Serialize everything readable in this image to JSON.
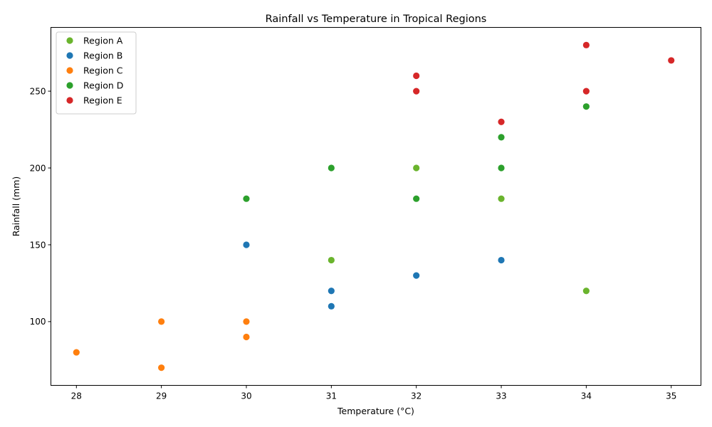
{
  "chart_data": {
    "type": "scatter",
    "title": "Rainfall vs Temperature in Tropical Regions",
    "xlabel": "Temperature (°C)",
    "ylabel": "Rainfall (mm)",
    "xlim": [
      27.7,
      35.35
    ],
    "ylim": [
      58.5,
      291.5
    ],
    "xticks": [
      28,
      29,
      30,
      31,
      32,
      33,
      34,
      35
    ],
    "yticks": [
      100,
      150,
      200,
      250
    ],
    "grid": false,
    "legend_position": "upper-left",
    "series": [
      {
        "name": "Region A",
        "color": "#6ab42d",
        "points": [
          {
            "x": 31,
            "y": 140
          },
          {
            "x": 32,
            "y": 200
          },
          {
            "x": 33,
            "y": 180
          },
          {
            "x": 34,
            "y": 120
          }
        ]
      },
      {
        "name": "Region B",
        "color": "#1f77b4",
        "points": [
          {
            "x": 30,
            "y": 150
          },
          {
            "x": 31,
            "y": 120
          },
          {
            "x": 31,
            "y": 110
          },
          {
            "x": 32,
            "y": 130
          },
          {
            "x": 33,
            "y": 140
          }
        ]
      },
      {
        "name": "Region C",
        "color": "#ff7f0e",
        "points": [
          {
            "x": 28,
            "y": 80
          },
          {
            "x": 29,
            "y": 100
          },
          {
            "x": 29,
            "y": 70
          },
          {
            "x": 30,
            "y": 100
          },
          {
            "x": 30,
            "y": 90
          }
        ]
      },
      {
        "name": "Region D",
        "color": "#2ca02c",
        "points": [
          {
            "x": 30,
            "y": 180
          },
          {
            "x": 31,
            "y": 200
          },
          {
            "x": 32,
            "y": 180
          },
          {
            "x": 33,
            "y": 220
          },
          {
            "x": 33,
            "y": 200
          },
          {
            "x": 34,
            "y": 240
          }
        ]
      },
      {
        "name": "Region E",
        "color": "#d62728",
        "points": [
          {
            "x": 32,
            "y": 260
          },
          {
            "x": 32,
            "y": 250
          },
          {
            "x": 33,
            "y": 230
          },
          {
            "x": 34,
            "y": 280
          },
          {
            "x": 34,
            "y": 250
          },
          {
            "x": 35,
            "y": 270
          }
        ]
      }
    ]
  }
}
